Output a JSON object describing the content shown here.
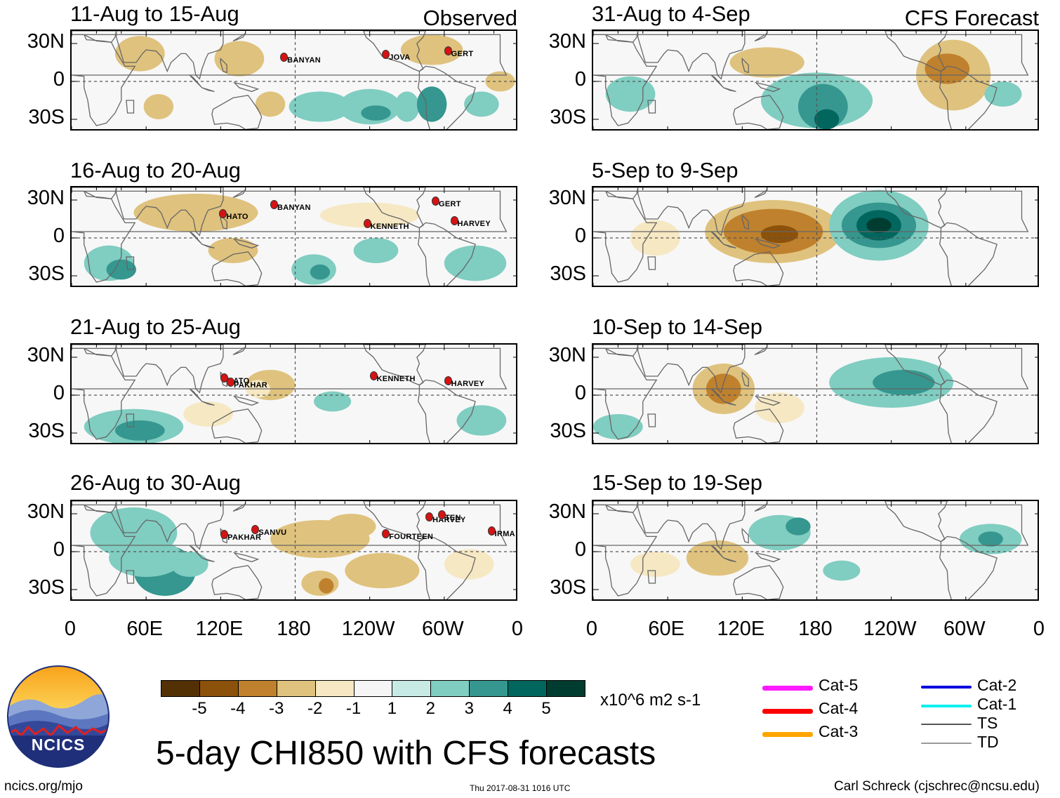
{
  "header": {
    "left_tag": "Observed",
    "right_tag": "CFS Forecast"
  },
  "observed_panels": [
    {
      "title": "11-Aug to 15-Aug",
      "storms": [
        "BANYAN",
        "JOVA",
        "GERT"
      ]
    },
    {
      "title": "16-Aug to 20-Aug",
      "storms": [
        "HATO",
        "BANYAN",
        "KENNETH",
        "GERT",
        "HARVEY"
      ]
    },
    {
      "title": "21-Aug to 25-Aug",
      "storms": [
        "HATO",
        "PAKHAR",
        "KENNETH",
        "HARVEY"
      ]
    },
    {
      "title": "26-Aug to 30-Aug",
      "storms": [
        "PAKHAR",
        "SANVU",
        "HARVEY",
        "TEN",
        "FOURTEEN",
        "IRMA"
      ]
    }
  ],
  "forecast_panels": [
    {
      "title": "31-Aug to 4-Sep"
    },
    {
      "title": "5-Sep to 9-Sep"
    },
    {
      "title": "10-Sep to 14-Sep"
    },
    {
      "title": "15-Sep to 19-Sep"
    }
  ],
  "lat_labels": [
    "30N",
    "0",
    "30S"
  ],
  "lon_labels": [
    "0",
    "60E",
    "120E",
    "180",
    "120W",
    "60W",
    "0"
  ],
  "colorbar": {
    "colors": [
      "#543005",
      "#8c510a",
      "#bf812d",
      "#dfc27d",
      "#f6e8c3",
      "#f5f5f5",
      "#c7eae5",
      "#80cdc1",
      "#35978f",
      "#01665e",
      "#003c30"
    ],
    "labels": [
      "-5",
      "-4",
      "-3",
      "-2",
      "-1",
      "1",
      "2",
      "3",
      "4",
      "5"
    ],
    "units": "x10^6 m2 s-1"
  },
  "legend": {
    "items": [
      {
        "label": "Cat-5",
        "color": "#ff1aff"
      },
      {
        "label": "Cat-4",
        "color": "#ff0000"
      },
      {
        "label": "Cat-3",
        "color": "#ffa500"
      },
      {
        "label": "Cat-2",
        "color": "#0000e0"
      },
      {
        "label": "Cat-1",
        "color": "#00f0f0"
      },
      {
        "label": "TS",
        "color": "#555555"
      },
      {
        "label": "TD",
        "color": "#999999"
      }
    ]
  },
  "logo": {
    "text": "NCICS"
  },
  "main_title": "5-day CHI850 with CFS forecasts",
  "footer": {
    "url": "ncics.org/mjo",
    "timestamp": "Thu 2017-08-31 1016 UTC",
    "author": "Carl Schreck (cjschrec@ncsu.edu)"
  }
}
